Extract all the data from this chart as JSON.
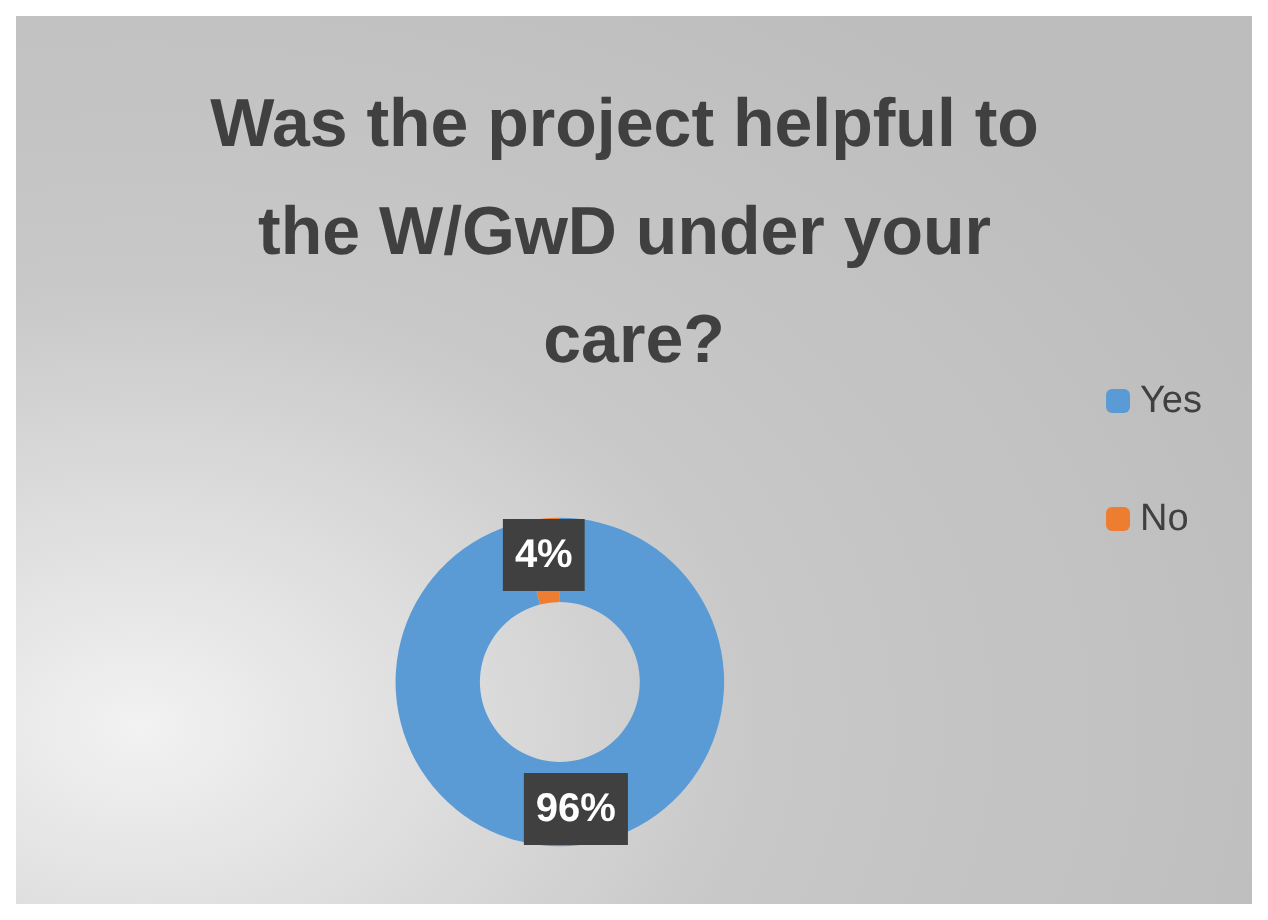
{
  "chart_data": {
    "type": "donut",
    "title": "Was the project helpful to the W/GwD under your care?",
    "categories": [
      "Yes",
      "No"
    ],
    "values": [
      96,
      4
    ],
    "colors": [
      "#5b9bd5",
      "#ed7d31"
    ],
    "value_labels": [
      "96%",
      "4%"
    ],
    "legend": "right"
  }
}
